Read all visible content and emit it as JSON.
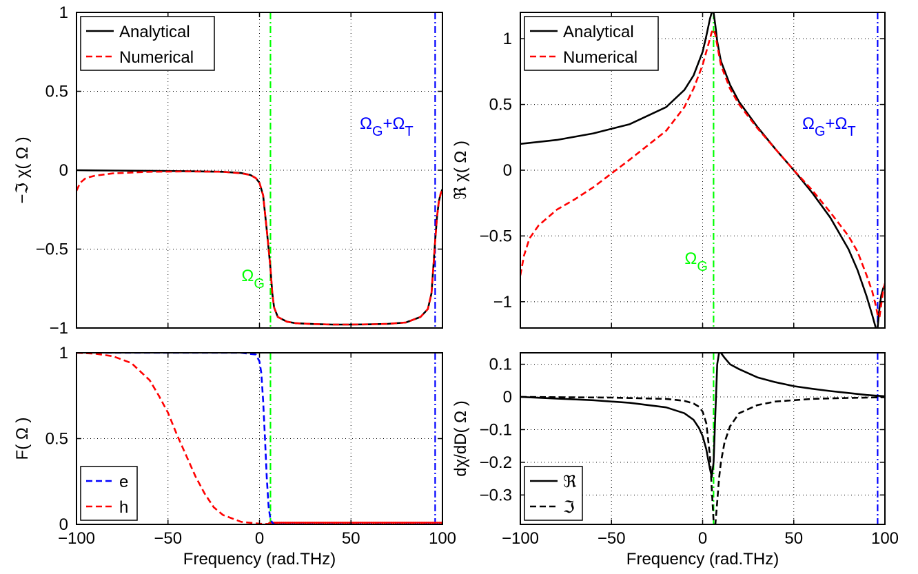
{
  "chart_data": [
    {
      "id": "panel-a",
      "type": "line",
      "ylabel": "−ℑ χ( Ω )",
      "xlim": [
        -100,
        100
      ],
      "ylim": [
        -1,
        1
      ],
      "xticks": [
        -100,
        -50,
        0,
        50,
        100
      ],
      "xtick_labels": [
        "",
        "",
        "",
        "",
        ""
      ],
      "yticks": [
        -1,
        -0.5,
        0,
        0.5,
        1
      ],
      "ytick_labels": [
        "−1",
        "−0.5",
        "0",
        "0.5",
        "1"
      ],
      "grid": true,
      "legend": {
        "position": "top-left",
        "entries": [
          "Analytical",
          "Numerical"
        ]
      },
      "series": [
        {
          "name": "Analytical",
          "color": "#000000",
          "dash": "solid",
          "x": [
            -100,
            -80,
            -60,
            -40,
            -20,
            -10,
            -5,
            -2,
            0,
            2,
            4,
            5,
            6,
            7,
            8,
            10,
            15,
            20,
            30,
            40,
            50,
            60,
            70,
            80,
            88,
            92,
            94,
            95,
            96,
            97,
            98,
            99,
            100
          ],
          "y": [
            0.0,
            -0.002,
            -0.004,
            -0.006,
            -0.01,
            -0.018,
            -0.03,
            -0.05,
            -0.08,
            -0.16,
            -0.38,
            -0.5,
            -0.62,
            -0.78,
            -0.87,
            -0.93,
            -0.96,
            -0.97,
            -0.975,
            -0.978,
            -0.978,
            -0.977,
            -0.974,
            -0.965,
            -0.93,
            -0.88,
            -0.78,
            -0.62,
            -0.45,
            -0.3,
            -0.2,
            -0.15,
            -0.12
          ]
        },
        {
          "name": "Numerical",
          "color": "#ff0000",
          "dash": "dashed",
          "x": [
            -100,
            -98,
            -95,
            -90,
            -80,
            -60,
            -40,
            -20,
            -10,
            -5,
            -2,
            0,
            2,
            4,
            5,
            6,
            7,
            8,
            10,
            15,
            20,
            30,
            40,
            50,
            60,
            70,
            80,
            88,
            92,
            94,
            95,
            96,
            97,
            98,
            99,
            100
          ],
          "y": [
            -0.13,
            -0.08,
            -0.05,
            -0.035,
            -0.02,
            -0.01,
            -0.008,
            -0.01,
            -0.02,
            -0.03,
            -0.05,
            -0.08,
            -0.16,
            -0.38,
            -0.5,
            -0.62,
            -0.78,
            -0.87,
            -0.93,
            -0.96,
            -0.97,
            -0.975,
            -0.978,
            -0.978,
            -0.977,
            -0.974,
            -0.965,
            -0.93,
            -0.88,
            -0.78,
            -0.62,
            -0.45,
            -0.3,
            -0.2,
            -0.15,
            -0.12
          ]
        }
      ],
      "vlines": [
        {
          "x": 6,
          "color": "#00ff00",
          "label": "ΩG"
        },
        {
          "x": 96,
          "color": "#0000ff",
          "label": "ΩG+ΩT"
        }
      ]
    },
    {
      "id": "panel-b",
      "type": "line",
      "ylabel": "ℜ χ( Ω )",
      "xlim": [
        -100,
        100
      ],
      "ylim": [
        -1.2,
        1.2
      ],
      "xticks": [
        -100,
        -50,
        0,
        50,
        100
      ],
      "xtick_labels": [
        "",
        "",
        "",
        "",
        ""
      ],
      "yticks": [
        -1,
        -0.5,
        0,
        0.5,
        1
      ],
      "ytick_labels": [
        "−1",
        "−0.5",
        "0",
        "0.5",
        "1"
      ],
      "grid": true,
      "legend": {
        "position": "top-left",
        "entries": [
          "Analytical",
          "Numerical"
        ]
      },
      "series": [
        {
          "name": "Analytical",
          "color": "#000000",
          "dash": "solid",
          "x": [
            -100,
            -80,
            -60,
            -40,
            -20,
            -10,
            -5,
            0,
            2,
            4,
            5,
            6,
            7,
            8,
            10,
            15,
            20,
            30,
            40,
            50,
            60,
            70,
            80,
            85,
            90,
            93,
            95,
            96,
            97,
            98,
            99,
            100
          ],
          "y": [
            0.2,
            0.23,
            0.28,
            0.35,
            0.48,
            0.61,
            0.72,
            0.9,
            1.02,
            1.15,
            1.2,
            1.2,
            1.1,
            0.98,
            0.83,
            0.65,
            0.52,
            0.33,
            0.16,
            0.0,
            -0.17,
            -0.36,
            -0.6,
            -0.76,
            -0.96,
            -1.1,
            -1.2,
            -1.2,
            -1.05,
            -0.95,
            -0.9,
            -0.87
          ]
        },
        {
          "name": "Numerical",
          "color": "#ff0000",
          "dash": "dashed",
          "x": [
            -100,
            -98,
            -95,
            -90,
            -80,
            -70,
            -60,
            -40,
            -20,
            -10,
            -5,
            0,
            2,
            4,
            5,
            6,
            7,
            8,
            10,
            15,
            20,
            30,
            40,
            50,
            60,
            70,
            80,
            85,
            90,
            93,
            95,
            96,
            97,
            98,
            99,
            100
          ],
          "y": [
            -0.8,
            -0.65,
            -0.52,
            -0.42,
            -0.3,
            -0.22,
            -0.13,
            0.08,
            0.3,
            0.48,
            0.62,
            0.8,
            0.9,
            1.0,
            1.05,
            1.07,
            1.03,
            0.95,
            0.8,
            0.62,
            0.5,
            0.32,
            0.16,
            0.0,
            -0.15,
            -0.32,
            -0.5,
            -0.62,
            -0.8,
            -0.92,
            -1.03,
            -1.1,
            -1.12,
            -1.02,
            -0.92,
            -0.86
          ]
        }
      ],
      "vlines": [
        {
          "x": 6,
          "color": "#00ff00",
          "label": "ΩG"
        },
        {
          "x": 96,
          "color": "#0000ff",
          "label": "ΩG+ΩT"
        }
      ]
    },
    {
      "id": "panel-c",
      "type": "line",
      "xlabel": "Frequency (rad.THz)",
      "ylabel": "F( Ω )",
      "xlim": [
        -100,
        100
      ],
      "ylim": [
        0,
        1
      ],
      "xticks": [
        -100,
        -50,
        0,
        50,
        100
      ],
      "xtick_labels": [
        "−100",
        "−50",
        "0",
        "50",
        "100"
      ],
      "yticks": [
        0,
        0.5,
        1
      ],
      "ytick_labels": [
        "0",
        "0.5",
        "1"
      ],
      "grid": true,
      "legend": {
        "position": "bottom-left",
        "entries": [
          "e",
          "h"
        ]
      },
      "series": [
        {
          "name": "e",
          "color": "#0000ff",
          "dash": "dashed",
          "x": [
            -100,
            -50,
            -10,
            -2,
            0,
            1,
            2,
            3,
            4,
            5,
            6,
            7,
            8,
            10,
            20,
            100
          ],
          "y": [
            1,
            1,
            1,
            0.99,
            0.95,
            0.88,
            0.72,
            0.5,
            0.27,
            0.1,
            0.03,
            0.01,
            0.0,
            0.0,
            0.0,
            0.0
          ]
        },
        {
          "name": "h",
          "color": "#ff0000",
          "dash": "dashed",
          "x": [
            -100,
            -90,
            -80,
            -70,
            -60,
            -55,
            -50,
            -45,
            -40,
            -35,
            -30,
            -25,
            -20,
            -10,
            0,
            10,
            100
          ],
          "y": [
            1,
            0.995,
            0.98,
            0.94,
            0.84,
            0.75,
            0.65,
            0.52,
            0.4,
            0.28,
            0.18,
            0.1,
            0.055,
            0.015,
            0.004,
            0.0,
            0.0
          ]
        }
      ],
      "markers": {
        "color": "#ff0000",
        "x_from": 6,
        "x_to": 100,
        "y": 0
      },
      "vlines": [
        {
          "x": 6,
          "color": "#00ff00",
          "label": ""
        },
        {
          "x": 96,
          "color": "#0000ff",
          "label": ""
        }
      ]
    },
    {
      "id": "panel-d",
      "type": "line",
      "xlabel": "Frequency (rad.THz)",
      "ylabel": "dχ/dD( Ω )",
      "xlim": [
        -100,
        100
      ],
      "ylim": [
        -0.39,
        0.135
      ],
      "xticks": [
        -100,
        -50,
        0,
        50,
        100
      ],
      "xtick_labels": [
        "−100",
        "−50",
        "0",
        "50",
        "100"
      ],
      "yticks": [
        -0.3,
        -0.2,
        -0.1,
        0,
        0.1
      ],
      "ytick_labels": [
        "−0.3",
        "−0.2",
        "−0.1",
        "0",
        "0.1"
      ],
      "grid": true,
      "legend": {
        "position": "bottom-left",
        "entries": [
          "ℜ",
          "ℑ"
        ]
      },
      "series": [
        {
          "name": "ℜ",
          "color": "#000000",
          "dash": "solid",
          "x": [
            -100,
            -80,
            -60,
            -40,
            -20,
            -10,
            -5,
            -2,
            0,
            2,
            3,
            4,
            5,
            6,
            7,
            8,
            9,
            10,
            12,
            15,
            20,
            30,
            40,
            50,
            60,
            70,
            80,
            90,
            100
          ],
          "y": [
            0.0,
            -0.005,
            -0.01,
            -0.018,
            -0.032,
            -0.05,
            -0.07,
            -0.095,
            -0.12,
            -0.16,
            -0.19,
            -0.22,
            -0.245,
            -0.2,
            -0.05,
            0.1,
            0.135,
            0.135,
            0.12,
            0.1,
            0.085,
            0.06,
            0.045,
            0.033,
            0.025,
            0.018,
            0.012,
            0.006,
            0.002
          ]
        },
        {
          "name": "ℑ",
          "color": "#000000",
          "dash": "dashed",
          "x": [
            -100,
            -50,
            -20,
            -10,
            -5,
            -2,
            0,
            2,
            4,
            5,
            6,
            7,
            8,
            9,
            10,
            12,
            15,
            20,
            30,
            40,
            60,
            80,
            100
          ],
          "y": [
            0.0,
            -0.002,
            -0.006,
            -0.012,
            -0.02,
            -0.03,
            -0.045,
            -0.08,
            -0.18,
            -0.28,
            -0.38,
            -0.39,
            -0.32,
            -0.25,
            -0.2,
            -0.14,
            -0.09,
            -0.05,
            -0.025,
            -0.014,
            -0.006,
            -0.003,
            -0.001
          ]
        }
      ],
      "vlines": [
        {
          "x": 6,
          "color": "#00ff00",
          "label": ""
        },
        {
          "x": 96,
          "color": "#0000ff",
          "label": ""
        }
      ]
    }
  ]
}
